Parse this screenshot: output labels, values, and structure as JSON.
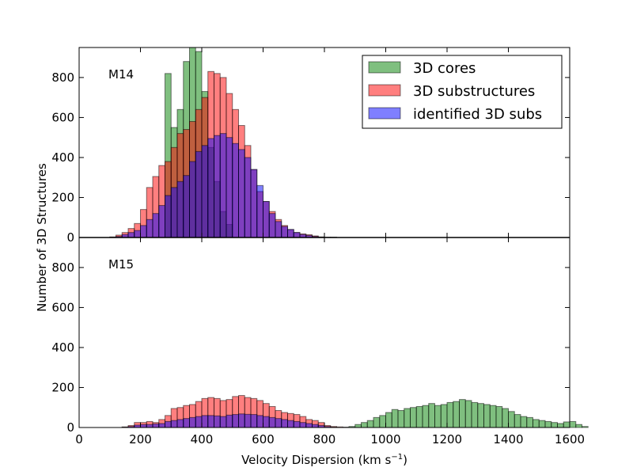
{
  "chart_data": {
    "type": "histogram",
    "xlabel": "Velocity Dispersion (km s",
    "xlabel_sup": "−1",
    "xlabel_close": ")",
    "ylabel": "Number of 3D Structures",
    "xlim": [
      0,
      1600
    ],
    "ylim": [
      0,
      950
    ],
    "bin_width": 20,
    "xticks": [
      0,
      200,
      400,
      600,
      800,
      1000,
      1200,
      1400,
      1600
    ],
    "yticks": [
      0,
      200,
      400,
      600,
      800
    ],
    "legend": {
      "location": "top-right",
      "entries": [
        {
          "label": "3D cores",
          "color": "#008000"
        },
        {
          "label": "3D substructures",
          "color": "#ff0000"
        },
        {
          "label": "identified 3D subs",
          "color": "#0000ff"
        }
      ]
    },
    "panels": [
      {
        "label": "M14",
        "series": [
          {
            "name": "3D cores",
            "color": "#008000",
            "x0": 280,
            "counts": [
              820,
              550,
              640,
              880,
              950,
              930,
              730,
              450,
              280,
              130,
              65
            ]
          },
          {
            "name": "3D substructures",
            "color": "#ff0000",
            "x0": 100,
            "counts": [
              3,
              12,
              25,
              45,
              70,
              140,
              250,
              305,
              360,
              380,
              450,
              520,
              540,
              580,
              640,
              700,
              830,
              820,
              800,
              720,
              640,
              560,
              460,
              340,
              230,
              180,
              130,
              90,
              60,
              40,
              25,
              18,
              14,
              8,
              3,
              2,
              2
            ]
          },
          {
            "name": "identified 3D subs",
            "color": "#0000ff",
            "x0": 100,
            "counts": [
              1,
              5,
              15,
              25,
              35,
              60,
              90,
              120,
              160,
              210,
              250,
              280,
              310,
              380,
              430,
              460,
              495,
              510,
              520,
              500,
              470,
              440,
              400,
              340,
              260,
              180,
              120,
              80,
              55,
              40,
              25,
              15,
              10,
              5,
              2
            ]
          }
        ]
      },
      {
        "label": "M15",
        "series": [
          {
            "name": "3D cores",
            "color": "#008000",
            "x0": 880,
            "counts": [
              5,
              15,
              25,
              35,
              50,
              60,
              75,
              90,
              85,
              95,
              100,
              105,
              110,
              120,
              110,
              115,
              125,
              130,
              140,
              135,
              125,
              120,
              115,
              110,
              105,
              95,
              80,
              65,
              55,
              50,
              40,
              35,
              30,
              25,
              20,
              28,
              30,
              15,
              5
            ]
          },
          {
            "name": "3D substructures",
            "color": "#ff0000",
            "x0": 140,
            "counts": [
              3,
              10,
              25,
              25,
              30,
              25,
              40,
              60,
              95,
              100,
              110,
              115,
              130,
              145,
              150,
              145,
              135,
              140,
              155,
              160,
              150,
              145,
              135,
              120,
              105,
              85,
              75,
              70,
              65,
              55,
              40,
              35,
              25,
              10,
              5,
              3,
              2
            ]
          },
          {
            "name": "identified 3D subs",
            "color": "#0000ff",
            "x0": 140,
            "counts": [
              2,
              5,
              12,
              15,
              15,
              18,
              20,
              30,
              35,
              40,
              45,
              50,
              55,
              60,
              60,
              58,
              55,
              62,
              65,
              68,
              66,
              65,
              60,
              55,
              50,
              45,
              40,
              35,
              30,
              25,
              20,
              15,
              10,
              5,
              2
            ]
          }
        ]
      }
    ]
  }
}
